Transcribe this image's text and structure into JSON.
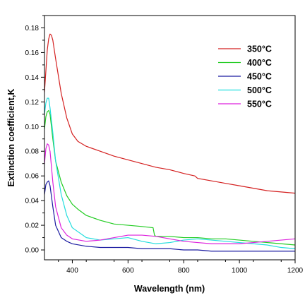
{
  "chart_data": {
    "type": "line",
    "xlabel": "Wavelength (nm)",
    "ylabel": "Extinction coefficient,K",
    "xlim": [
      300,
      1200
    ],
    "ylim": [
      -0.008,
      0.19
    ],
    "xticks": [
      400,
      600,
      800,
      1000,
      1200
    ],
    "xtick_labels": [
      "400",
      "600",
      "800",
      "1000",
      "1200"
    ],
    "yticks": [
      0.0,
      0.02,
      0.04,
      0.06,
      0.08,
      0.1,
      0.12,
      0.14,
      0.16,
      0.18
    ],
    "ytick_labels": [
      "0.00",
      "0.02",
      "0.04",
      "0.06",
      "0.08",
      "0.10",
      "0.12",
      "0.14",
      "0.16",
      "0.18"
    ],
    "grid": false,
    "legend_position": "top-right",
    "series": [
      {
        "name": "350°C",
        "color": "#d42020",
        "x": [
          300,
          310,
          315,
          320,
          325,
          330,
          340,
          360,
          380,
          400,
          420,
          450,
          500,
          550,
          600,
          650,
          700,
          750,
          800,
          840,
          850,
          900,
          950,
          1000,
          1050,
          1100,
          1150,
          1200
        ],
        "y": [
          0.128,
          0.162,
          0.171,
          0.175,
          0.174,
          0.17,
          0.155,
          0.127,
          0.107,
          0.094,
          0.088,
          0.084,
          0.08,
          0.076,
          0.073,
          0.07,
          0.067,
          0.065,
          0.062,
          0.06,
          0.058,
          0.056,
          0.054,
          0.052,
          0.05,
          0.048,
          0.047,
          0.046
        ]
      },
      {
        "name": "400°C",
        "color": "#22cc22",
        "x": [
          300,
          305,
          310,
          315,
          320,
          330,
          340,
          360,
          380,
          400,
          420,
          450,
          500,
          550,
          600,
          650,
          690,
          695,
          700,
          750,
          800,
          850,
          900,
          950,
          1000,
          1050,
          1100,
          1150,
          1200
        ],
        "y": [
          0.098,
          0.108,
          0.112,
          0.113,
          0.11,
          0.09,
          0.072,
          0.055,
          0.044,
          0.037,
          0.033,
          0.028,
          0.024,
          0.021,
          0.02,
          0.019,
          0.018,
          0.012,
          0.011,
          0.011,
          0.01,
          0.01,
          0.009,
          0.009,
          0.008,
          0.007,
          0.006,
          0.005,
          0.004
        ]
      },
      {
        "name": "450°C",
        "color": "#1a1aa0",
        "x": [
          300,
          305,
          310,
          315,
          320,
          330,
          340,
          360,
          380,
          400,
          450,
          500,
          550,
          600,
          650,
          700,
          750,
          800,
          850,
          900,
          950,
          1000,
          1050,
          1100,
          1150,
          1200
        ],
        "y": [
          0.045,
          0.053,
          0.055,
          0.056,
          0.052,
          0.035,
          0.02,
          0.01,
          0.007,
          0.005,
          0.003,
          0.002,
          0.002,
          0.002,
          0.001,
          0.001,
          0.001,
          0.0,
          0.0,
          -0.001,
          -0.001,
          -0.001,
          -0.001,
          -0.001,
          -0.001,
          -0.001
        ]
      },
      {
        "name": "500°C",
        "color": "#22dddd",
        "x": [
          300,
          305,
          310,
          315,
          320,
          330,
          340,
          360,
          380,
          400,
          450,
          500,
          550,
          600,
          650,
          700,
          750,
          800,
          850,
          900,
          950,
          1000,
          1050,
          1100,
          1150,
          1200
        ],
        "y": [
          0.11,
          0.119,
          0.123,
          0.123,
          0.115,
          0.095,
          0.072,
          0.045,
          0.028,
          0.018,
          0.01,
          0.008,
          0.009,
          0.01,
          0.007,
          0.005,
          0.006,
          0.008,
          0.009,
          0.008,
          0.007,
          0.006,
          0.005,
          0.004,
          0.002,
          0.001
        ]
      },
      {
        "name": "550°C",
        "color": "#dd22dd",
        "x": [
          300,
          305,
          310,
          315,
          320,
          330,
          340,
          360,
          380,
          400,
          450,
          500,
          550,
          600,
          650,
          700,
          750,
          800,
          850,
          900,
          950,
          1000,
          1050,
          1100,
          1150,
          1200
        ],
        "y": [
          0.07,
          0.082,
          0.086,
          0.085,
          0.08,
          0.055,
          0.035,
          0.018,
          0.012,
          0.009,
          0.007,
          0.008,
          0.01,
          0.012,
          0.012,
          0.011,
          0.009,
          0.007,
          0.006,
          0.005,
          0.005,
          0.005,
          0.006,
          0.007,
          0.008,
          0.009
        ]
      }
    ]
  }
}
